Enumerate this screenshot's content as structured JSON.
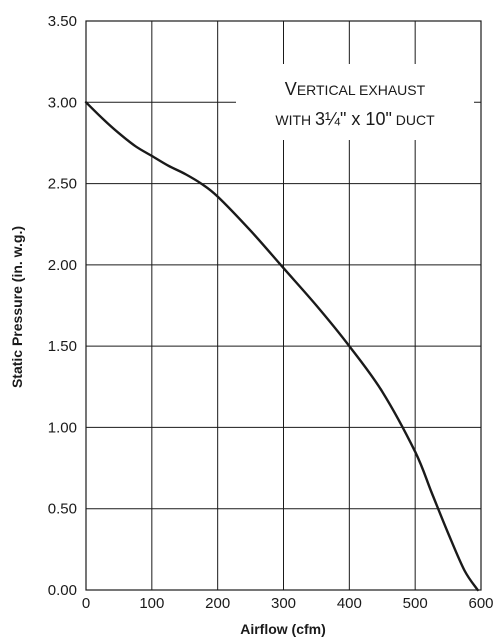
{
  "chart_data": {
    "type": "line",
    "xlabel": "Airflow (cfm)",
    "ylabel": "Static Pressure (in. w.g.)",
    "xlim": [
      0,
      600
    ],
    "ylim": [
      0,
      3.5
    ],
    "x_ticks": [
      "0",
      "100",
      "200",
      "300",
      "400",
      "500",
      "600"
    ],
    "y_ticks": [
      "0.00",
      "0.50",
      "1.00",
      "1.50",
      "2.00",
      "2.50",
      "3.00",
      "3.50"
    ],
    "grid": true,
    "annotation": {
      "line1_cap": "V",
      "line1_rest": "ERTICAL EXHAUST",
      "line2_pre": "WITH ",
      "line2_big": "3¼\" x 10\"",
      "line2_post": " DUCT"
    },
    "series": [
      {
        "x": [
          0,
          25,
          50,
          75,
          100,
          125,
          150,
          175,
          200,
          250,
          300,
          350,
          400,
          450,
          500,
          525,
          550,
          575,
          595
        ],
        "y": [
          3.0,
          2.9,
          2.81,
          2.73,
          2.67,
          2.61,
          2.56,
          2.5,
          2.42,
          2.21,
          1.98,
          1.75,
          1.5,
          1.22,
          0.85,
          0.6,
          0.35,
          0.12,
          0.0
        ]
      }
    ]
  }
}
